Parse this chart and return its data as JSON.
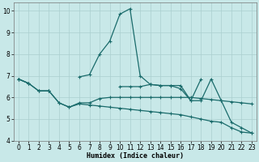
{
  "xlabel": "Humidex (Indice chaleur)",
  "bg_color": "#c8e8e8",
  "line_color": "#1a6b6b",
  "grid_color": "#aacfcf",
  "xlim": [
    -0.5,
    23.5
  ],
  "ylim": [
    4.0,
    10.4
  ],
  "yticks": [
    4,
    5,
    6,
    7,
    8,
    9,
    10
  ],
  "xticks": [
    0,
    1,
    2,
    3,
    4,
    5,
    6,
    7,
    8,
    9,
    10,
    11,
    12,
    13,
    14,
    15,
    16,
    17,
    18,
    19,
    20,
    21,
    22,
    23
  ],
  "series": [
    {
      "x": [
        0,
        1,
        2,
        3,
        4,
        5,
        6,
        7,
        8,
        9,
        10,
        11,
        12,
        13,
        14,
        15,
        16,
        17,
        18,
        19,
        20,
        21,
        22,
        23
      ],
      "y": [
        6.85,
        6.65,
        null,
        null,
        null,
        null,
        6.95,
        7.05,
        8.0,
        8.6,
        9.85,
        10.1,
        7.0,
        6.6,
        null,
        null,
        null,
        null,
        null,
        null,
        null,
        null,
        null,
        null
      ]
    },
    {
      "x": [
        0,
        1,
        2,
        3,
        4,
        5,
        6,
        7,
        8,
        9,
        10,
        11,
        12,
        13,
        14,
        15,
        16,
        17,
        18,
        19,
        20,
        21,
        22,
        23
      ],
      "y": [
        6.85,
        6.65,
        6.3,
        6.3,
        null,
        null,
        null,
        null,
        null,
        null,
        6.5,
        6.5,
        6.5,
        6.6,
        6.55,
        6.55,
        6.4,
        5.85,
        6.85,
        null,
        null,
        null,
        null,
        null
      ]
    },
    {
      "x": [
        13,
        14,
        15,
        16,
        17,
        18,
        19,
        20,
        21,
        22,
        23
      ],
      "y": [
        6.6,
        6.55,
        6.55,
        6.55,
        5.85,
        5.85,
        6.85,
        5.85,
        4.85,
        4.6,
        4.35
      ]
    },
    {
      "x": [
        0,
        1,
        2,
        3,
        4,
        5,
        6,
        7,
        8,
        9,
        10,
        11,
        12,
        13,
        14,
        15,
        16,
        17,
        18,
        19,
        20,
        21,
        22,
        23
      ],
      "y": [
        6.85,
        6.65,
        6.3,
        6.3,
        5.75,
        5.55,
        5.7,
        5.65,
        5.6,
        5.55,
        5.5,
        5.45,
        5.4,
        5.35,
        5.3,
        5.25,
        5.2,
        5.1,
        5.0,
        4.9,
        4.85,
        4.6,
        4.4,
        4.35
      ]
    },
    {
      "x": [
        2,
        3,
        4,
        5,
        6,
        7,
        8,
        9,
        10,
        11,
        12,
        13,
        14,
        15,
        16,
        17,
        18,
        19,
        20,
        21,
        22,
        23
      ],
      "y": [
        6.3,
        6.3,
        5.75,
        5.55,
        5.75,
        5.75,
        5.95,
        6.0,
        6.0,
        6.0,
        6.0,
        6.0,
        6.0,
        6.0,
        6.0,
        6.0,
        5.95,
        5.9,
        5.85,
        5.8,
        5.75,
        5.7
      ]
    }
  ]
}
